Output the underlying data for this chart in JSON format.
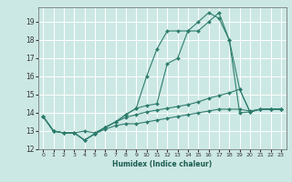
{
  "xlabel": "Humidex (Indice chaleur)",
  "background_color": "#cce8e4",
  "grid_color": "#ffffff",
  "line_color": "#2e7d6e",
  "xlim": [
    -0.5,
    23.5
  ],
  "ylim": [
    12,
    19.8
  ],
  "yticks": [
    12,
    13,
    14,
    15,
    16,
    17,
    18,
    19
  ],
  "xticks": [
    0,
    1,
    2,
    3,
    4,
    5,
    6,
    7,
    8,
    9,
    10,
    11,
    12,
    13,
    14,
    15,
    16,
    17,
    18,
    19,
    20,
    21,
    22,
    23
  ],
  "line1": [
    [
      0,
      13.8
    ],
    [
      1,
      13.0
    ],
    [
      2,
      12.9
    ],
    [
      3,
      12.9
    ],
    [
      4,
      12.5
    ],
    [
      5,
      12.85
    ],
    [
      6,
      13.1
    ],
    [
      7,
      13.3
    ],
    [
      8,
      13.4
    ],
    [
      9,
      13.4
    ],
    [
      10,
      13.5
    ],
    [
      11,
      13.6
    ],
    [
      12,
      13.7
    ],
    [
      13,
      13.8
    ],
    [
      14,
      13.9
    ],
    [
      15,
      14.0
    ],
    [
      16,
      14.1
    ],
    [
      17,
      14.2
    ],
    [
      18,
      14.2
    ],
    [
      19,
      14.2
    ],
    [
      20,
      14.1
    ],
    [
      21,
      14.2
    ],
    [
      22,
      14.2
    ],
    [
      23,
      14.2
    ]
  ],
  "line2": [
    [
      0,
      13.8
    ],
    [
      1,
      13.0
    ],
    [
      2,
      12.9
    ],
    [
      3,
      12.9
    ],
    [
      4,
      13.0
    ],
    [
      5,
      12.9
    ],
    [
      6,
      13.2
    ],
    [
      7,
      13.5
    ],
    [
      8,
      13.75
    ],
    [
      9,
      13.9
    ],
    [
      10,
      14.05
    ],
    [
      11,
      14.15
    ],
    [
      12,
      14.25
    ],
    [
      13,
      14.35
    ],
    [
      14,
      14.45
    ],
    [
      15,
      14.6
    ],
    [
      16,
      14.8
    ],
    [
      17,
      14.95
    ],
    [
      18,
      15.1
    ],
    [
      19,
      15.3
    ],
    [
      20,
      14.05
    ],
    [
      21,
      14.2
    ],
    [
      22,
      14.2
    ],
    [
      23,
      14.2
    ]
  ],
  "line3": [
    [
      0,
      13.8
    ],
    [
      1,
      13.0
    ],
    [
      2,
      12.9
    ],
    [
      3,
      12.9
    ],
    [
      4,
      12.5
    ],
    [
      5,
      12.85
    ],
    [
      6,
      13.2
    ],
    [
      7,
      13.5
    ],
    [
      8,
      13.9
    ],
    [
      9,
      14.25
    ],
    [
      10,
      16.0
    ],
    [
      11,
      17.5
    ],
    [
      12,
      18.5
    ],
    [
      13,
      18.5
    ],
    [
      14,
      18.5
    ],
    [
      15,
      19.0
    ],
    [
      16,
      19.5
    ],
    [
      17,
      19.2
    ],
    [
      18,
      18.0
    ],
    [
      19,
      14.0
    ],
    [
      20,
      14.05
    ],
    [
      21,
      14.2
    ],
    [
      22,
      14.2
    ],
    [
      23,
      14.2
    ]
  ],
  "line4": [
    [
      0,
      13.8
    ],
    [
      1,
      13.0
    ],
    [
      2,
      12.9
    ],
    [
      3,
      12.9
    ],
    [
      4,
      12.5
    ],
    [
      5,
      12.85
    ],
    [
      6,
      13.2
    ],
    [
      7,
      13.5
    ],
    [
      8,
      13.9
    ],
    [
      9,
      14.25
    ],
    [
      10,
      14.4
    ],
    [
      11,
      14.5
    ],
    [
      12,
      16.7
    ],
    [
      13,
      17.0
    ],
    [
      14,
      18.5
    ],
    [
      15,
      18.5
    ],
    [
      16,
      19.0
    ],
    [
      17,
      19.5
    ],
    [
      18,
      18.0
    ],
    [
      19,
      15.3
    ],
    [
      20,
      14.05
    ],
    [
      21,
      14.2
    ],
    [
      22,
      14.2
    ],
    [
      23,
      14.2
    ]
  ]
}
